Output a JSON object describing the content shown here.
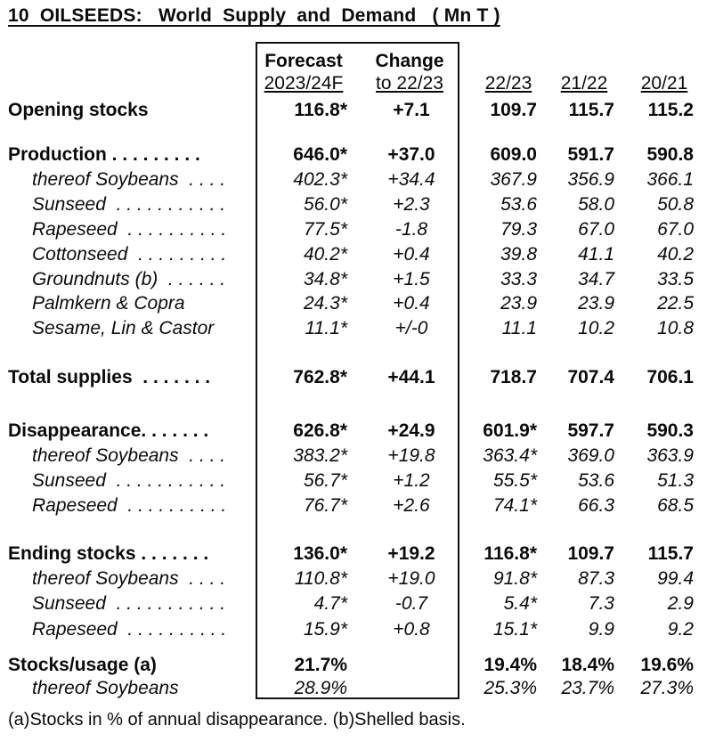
{
  "title": "10  OILSEEDS:   World  Supply  and  Demand   ( Mn T )",
  "columns": {
    "forecast_line1": "Forecast",
    "forecast_line2": "2023/24F",
    "change_line1": "Change",
    "change_line2": "to 22/23",
    "year1": "22/23",
    "year2": "21/22",
    "year3": "20/21"
  },
  "rows": [
    {
      "label": "Opening stocks",
      "forecast": "116.8*",
      "change": "+7.1",
      "y1": "109.7",
      "y2": "115.7",
      "y3": "115.2"
    },
    {
      "label": "Production . . . . . . . . .",
      "forecast": "646.0*",
      "change": "+37.0",
      "y1": "609.0",
      "y2": "591.7",
      "y3": "590.8"
    },
    {
      "label": "thereof Soybeans  . . . .",
      "forecast": "402.3*",
      "change": "+34.4",
      "y1": "367.9",
      "y2": "356.9",
      "y3": "366.1"
    },
    {
      "label": "Sunseed  . . . . . . . . . . .",
      "forecast": "56.0*",
      "change": "+2.3",
      "y1": "53.6",
      "y2": "58.0",
      "y3": "50.8"
    },
    {
      "label": "Rapeseed  . . . . . . . . . .",
      "forecast": "77.5*",
      "change": "-1.8",
      "y1": "79.3",
      "y2": "67.0",
      "y3": "67.0"
    },
    {
      "label": "Cottonseed  . . . . . . . . .",
      "forecast": "40.2*",
      "change": "+0.4",
      "y1": "39.8",
      "y2": "41.1",
      "y3": "40.2"
    },
    {
      "label": "Groundnuts (b)  . . . . . .",
      "forecast": "34.8*",
      "change": "+1.5",
      "y1": "33.3",
      "y2": "34.7",
      "y3": "33.5"
    },
    {
      "label": "Palmkern & Copra",
      "forecast": "24.3*",
      "change": "+0.4",
      "y1": "23.9",
      "y2": "23.9",
      "y3": "22.5"
    },
    {
      "label": "Sesame, Lin & Castor",
      "forecast": "11.1*",
      "change": "+/-0",
      "y1": "11.1",
      "y2": "10.2",
      "y3": "10.8"
    },
    {
      "label": "Total supplies  . . . . . . .",
      "forecast": "762.8*",
      "change": "+44.1",
      "y1": "718.7",
      "y2": "707.4",
      "y3": "706.1"
    },
    {
      "label": "Disappearance. . . . . . .",
      "forecast": "626.8*",
      "change": "+24.9",
      "y1": "601.9*",
      "y2": "597.7",
      "y3": "590.3"
    },
    {
      "label": "thereof Soybeans  . . . .",
      "forecast": "383.2*",
      "change": "+19.8",
      "y1": "363.4*",
      "y2": "369.0",
      "y3": "363.9"
    },
    {
      "label": "Sunseed  . . . . . . . . . . .",
      "forecast": "56.7*",
      "change": "+1.2",
      "y1": "55.5*",
      "y2": "53.6",
      "y3": "51.3"
    },
    {
      "label": "Rapeseed  . . . . . . . . . .",
      "forecast": "76.7*",
      "change": "+2.6",
      "y1": "74.1*",
      "y2": "66.3",
      "y3": "68.5"
    },
    {
      "label": "Ending stocks . . . . . . .",
      "forecast": "136.0*",
      "change": "+19.2",
      "y1": "116.8*",
      "y2": "109.7",
      "y3": "115.7"
    },
    {
      "label": "thereof Soybeans  . . . .",
      "forecast": "110.8*",
      "change": "+19.0",
      "y1": "91.8*",
      "y2": "87.3",
      "y3": "99.4"
    },
    {
      "label": "Sunseed  . . . . . . . . . . .",
      "forecast": "4.7*",
      "change": "-0.7",
      "y1": "5.4*",
      "y2": "7.3",
      "y3": "2.9"
    },
    {
      "label": "Rapeseed  . . . . . . . . . .",
      "forecast": "15.9*",
      "change": "+0.8",
      "y1": "15.1*",
      "y2": "9.9",
      "y3": "9.2"
    },
    {
      "label": "Stocks/usage (a)",
      "forecast": "21.7%",
      "change": "",
      "y1": "19.4%",
      "y2": "18.4%",
      "y3": "19.6%"
    },
    {
      "label": "thereof Soybeans",
      "forecast": "28.9%",
      "change": "",
      "y1": "25.3%",
      "y2": "23.7%",
      "y3": "27.3%"
    }
  ],
  "footnote": "(a)Stocks in % of annual disappearance. (b)Shelled basis."
}
